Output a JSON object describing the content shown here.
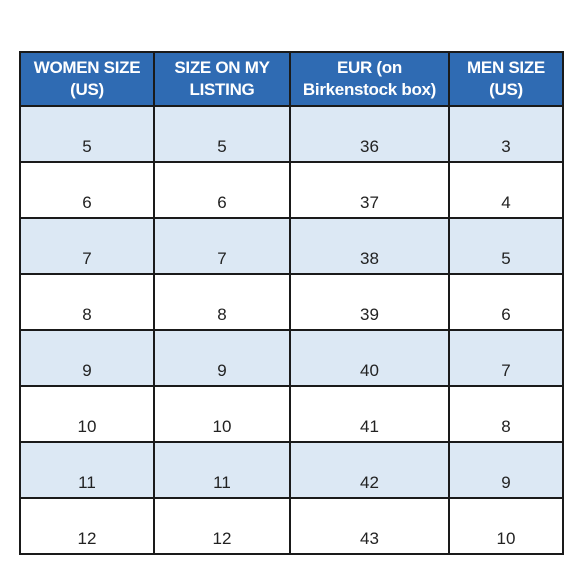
{
  "table": {
    "headers": [
      [
        "WOMEN SIZE",
        "(US)"
      ],
      [
        "SIZE ON MY",
        "LISTING"
      ],
      [
        "EUR (on",
        "Birkenstock box)"
      ],
      [
        "MEN SIZE",
        "(US)"
      ]
    ],
    "rows": [
      [
        "5",
        "5",
        "36",
        "3"
      ],
      [
        "6",
        "6",
        "37",
        "4"
      ],
      [
        "7",
        "7",
        "38",
        "5"
      ],
      [
        "8",
        "8",
        "39",
        "6"
      ],
      [
        "9",
        "9",
        "40",
        "7"
      ],
      [
        "10",
        "10",
        "41",
        "8"
      ],
      [
        "11",
        "11",
        "42",
        "9"
      ],
      [
        "12",
        "12",
        "43",
        "10"
      ]
    ]
  },
  "colors": {
    "header_bg": "#2f6bb3",
    "header_text": "#ffffff",
    "shaded_row_bg": "#dce8f4",
    "plain_row_bg": "#ffffff",
    "border": "#1a1a1a"
  }
}
